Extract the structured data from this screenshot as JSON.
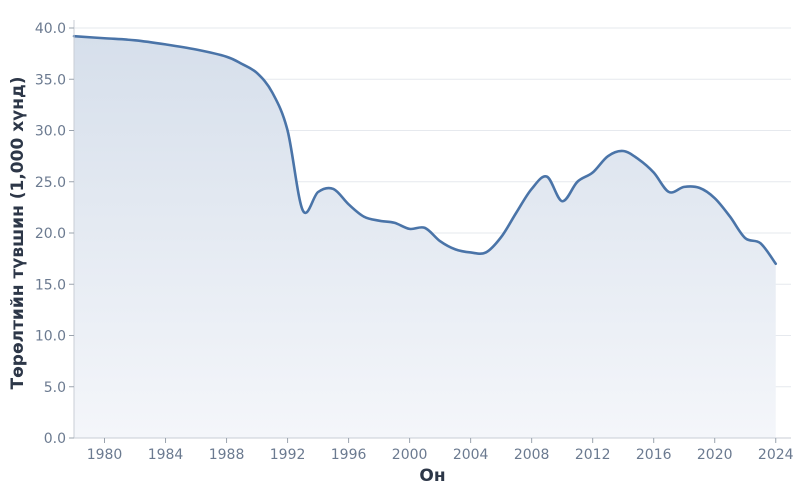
{
  "chart_data": {
    "type": "area",
    "title": "",
    "xlabel": "Он",
    "ylabel": "Төрөлтийн түвшин (1,000 хүнд)",
    "xlim": [
      1978,
      2025
    ],
    "ylim": [
      0,
      40
    ],
    "grid": true,
    "y_ticks": [
      "0.0",
      "5.0",
      "10.0",
      "15.0",
      "20.0",
      "25.0",
      "30.0",
      "35.0",
      "40.0"
    ],
    "x_ticks": [
      "1980",
      "1984",
      "1988",
      "1992",
      "1996",
      "2000",
      "2004",
      "2008",
      "2012",
      "2016",
      "2020",
      "2024"
    ],
    "line_color": "#4a74a8",
    "fill_color": "#dce4ee",
    "series": [
      {
        "x": [
          1978,
          1980,
          1982,
          1984,
          1986,
          1988,
          1989,
          1990,
          1991,
          1992,
          1993,
          1994,
          1995,
          1996,
          1997,
          1998,
          1999,
          2000,
          2001,
          2002,
          2003,
          2004,
          2005,
          2006,
          2007,
          2008,
          2009,
          2010,
          2011,
          2012,
          2013,
          2014,
          2015,
          2016,
          2017,
          2018,
          2019,
          2020,
          2021,
          2022,
          2023,
          2024
        ],
        "y": [
          39.2,
          39.0,
          38.8,
          38.4,
          37.9,
          37.2,
          36.5,
          35.6,
          33.7,
          30.0,
          22.2,
          24.0,
          24.3,
          22.8,
          21.6,
          21.2,
          21.0,
          20.4,
          20.5,
          19.2,
          18.4,
          18.1,
          18.1,
          19.6,
          22.0,
          24.3,
          25.5,
          23.1,
          25.0,
          25.9,
          27.5,
          28.0,
          27.2,
          25.9,
          24.0,
          24.5,
          24.4,
          23.4,
          21.6,
          19.5,
          19.0,
          17.0
        ]
      }
    ]
  }
}
